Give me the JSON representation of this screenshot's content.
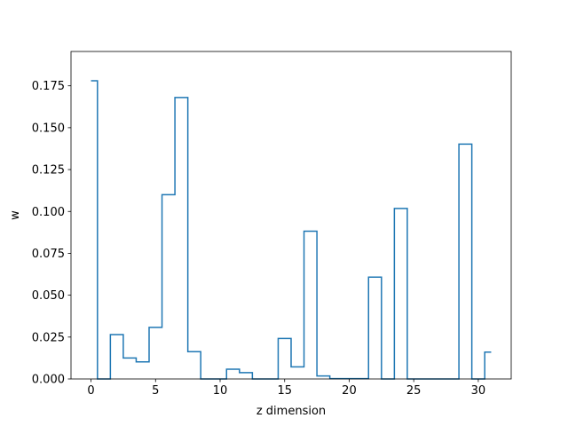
{
  "chart_data": {
    "type": "line",
    "drawstyle": "steps-mid",
    "xlabel": "z dimension",
    "ylabel": "w",
    "xlim": [
      -1.55,
      32.55
    ],
    "ylim": [
      0,
      0.1955
    ],
    "xticks": [
      0,
      5,
      10,
      15,
      20,
      25,
      30
    ],
    "xtick_labels": [
      "0",
      "5",
      "10",
      "15",
      "20",
      "25",
      "30"
    ],
    "yticks": [
      0.0,
      0.025,
      0.05,
      0.075,
      0.1,
      0.125,
      0.15,
      0.175
    ],
    "ytick_labels": [
      "0.000",
      "0.025",
      "0.050",
      "0.075",
      "0.100",
      "0.125",
      "0.150",
      "0.175"
    ],
    "grid": false,
    "series": [
      {
        "color": "#1f77b4",
        "x": [
          0,
          1,
          2,
          3,
          4,
          5,
          6,
          7,
          8,
          9,
          10,
          11,
          12,
          13,
          14,
          15,
          16,
          17,
          18,
          19,
          20,
          21,
          22,
          23,
          24,
          25,
          26,
          27,
          28,
          29,
          30,
          31
        ],
        "values": [
          0.178,
          0.0,
          0.0265,
          0.0125,
          0.0102,
          0.0308,
          0.11,
          0.168,
          0.0163,
          0.0,
          0.0,
          0.0058,
          0.0038,
          0.0,
          0.0,
          0.0242,
          0.0072,
          0.0882,
          0.0018,
          0.0002,
          0.0002,
          0.0002,
          0.0608,
          0.0,
          0.1018,
          0.0,
          0.0,
          0.0,
          0.0,
          0.1402,
          0.0,
          0.016
        ]
      }
    ]
  }
}
